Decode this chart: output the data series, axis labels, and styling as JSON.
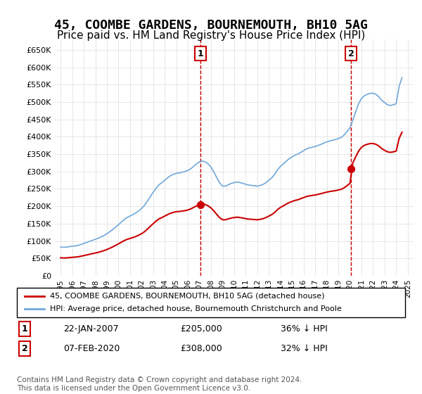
{
  "title": "45, COOMBE GARDENS, BOURNEMOUTH, BH10 5AG",
  "subtitle": "Price paid vs. HM Land Registry's House Price Index (HPI)",
  "title_fontsize": 13,
  "subtitle_fontsize": 11,
  "ylabel_ticks": [
    "£0",
    "£50K",
    "£100K",
    "£150K",
    "£200K",
    "£250K",
    "£300K",
    "£350K",
    "£400K",
    "£450K",
    "£500K",
    "£550K",
    "£600K",
    "£650K"
  ],
  "ytick_values": [
    0,
    50000,
    100000,
    150000,
    200000,
    250000,
    300000,
    350000,
    400000,
    450000,
    500000,
    550000,
    600000,
    650000
  ],
  "ylim": [
    0,
    680000
  ],
  "xlim_start": 1994.5,
  "xlim_end": 2025.5,
  "hpi_color": "#6fa8dc",
  "sale_color": "#cc0000",
  "marker_color": "#cc0000",
  "vline_color": "#cc0000",
  "grid_color": "#dddddd",
  "background_color": "#ffffff",
  "legend_label_sale": "45, COOMBE GARDENS, BOURNEMOUTH, BH10 5AG (detached house)",
  "legend_label_hpi": "HPI: Average price, detached house, Bournemouth Christchurch and Poole",
  "sale1_date": 2007.06,
  "sale1_price": 205000,
  "sale1_label": "1",
  "sale2_date": 2020.1,
  "sale2_price": 308000,
  "sale2_label": "2",
  "annotation1": "1   22-JAN-2007   £205,000   36% ↓ HPI",
  "annotation2": "2   07-FEB-2020   £308,000   32% ↓ HPI",
  "footnote": "Contains HM Land Registry data © Crown copyright and database right 2024.\nThis data is licensed under the Open Government Licence v3.0.",
  "hpi_years": [
    1995,
    1995.25,
    1995.5,
    1995.75,
    1996,
    1996.25,
    1996.5,
    1996.75,
    1997,
    1997.25,
    1997.5,
    1997.75,
    1998,
    1998.25,
    1998.5,
    1998.75,
    1999,
    1999.25,
    1999.5,
    1999.75,
    2000,
    2000.25,
    2000.5,
    2000.75,
    2001,
    2001.25,
    2001.5,
    2001.75,
    2002,
    2002.25,
    2002.5,
    2002.75,
    2003,
    2003.25,
    2003.5,
    2003.75,
    2004,
    2004.25,
    2004.5,
    2004.75,
    2005,
    2005.25,
    2005.5,
    2005.75,
    2006,
    2006.25,
    2006.5,
    2006.75,
    2007,
    2007.25,
    2007.5,
    2007.75,
    2008,
    2008.25,
    2008.5,
    2008.75,
    2009,
    2009.25,
    2009.5,
    2009.75,
    2010,
    2010.25,
    2010.5,
    2010.75,
    2011,
    2011.25,
    2011.5,
    2011.75,
    2012,
    2012.25,
    2012.5,
    2012.75,
    2013,
    2013.25,
    2013.5,
    2013.75,
    2014,
    2014.25,
    2014.5,
    2014.75,
    2015,
    2015.25,
    2015.5,
    2015.75,
    2016,
    2016.25,
    2016.5,
    2016.75,
    2017,
    2017.25,
    2017.5,
    2017.75,
    2018,
    2018.25,
    2018.5,
    2018.75,
    2019,
    2019.25,
    2019.5,
    2019.75,
    2020,
    2020.25,
    2020.5,
    2020.75,
    2021,
    2021.25,
    2021.5,
    2021.75,
    2022,
    2022.25,
    2022.5,
    2022.75,
    2023,
    2023.25,
    2023.5,
    2023.75,
    2024,
    2024.25,
    2024.5
  ],
  "hpi_values": [
    83000,
    82000,
    82500,
    84000,
    85000,
    86000,
    87500,
    90000,
    93000,
    96000,
    99000,
    102000,
    105000,
    108000,
    112000,
    116000,
    121000,
    127000,
    133000,
    140000,
    147000,
    155000,
    162000,
    168000,
    172000,
    176000,
    181000,
    187000,
    194000,
    203000,
    215000,
    228000,
    240000,
    252000,
    262000,
    268000,
    275000,
    282000,
    288000,
    292000,
    295000,
    296000,
    298000,
    300000,
    303000,
    308000,
    315000,
    322000,
    328000,
    330000,
    328000,
    322000,
    312000,
    298000,
    282000,
    267000,
    258000,
    258000,
    262000,
    266000,
    268000,
    270000,
    268000,
    266000,
    263000,
    261000,
    260000,
    259000,
    258000,
    260000,
    263000,
    268000,
    275000,
    282000,
    292000,
    305000,
    315000,
    322000,
    330000,
    337000,
    342000,
    347000,
    350000,
    355000,
    360000,
    365000,
    368000,
    370000,
    372000,
    375000,
    378000,
    382000,
    385000,
    388000,
    390000,
    392000,
    395000,
    398000,
    405000,
    415000,
    425000,
    448000,
    472000,
    495000,
    510000,
    518000,
    522000,
    525000,
    525000,
    522000,
    515000,
    505000,
    498000,
    492000,
    490000,
    492000,
    495000,
    545000,
    570000
  ],
  "sale_years": [
    2007.06,
    2020.1
  ],
  "sale_prices": [
    205000,
    308000
  ]
}
